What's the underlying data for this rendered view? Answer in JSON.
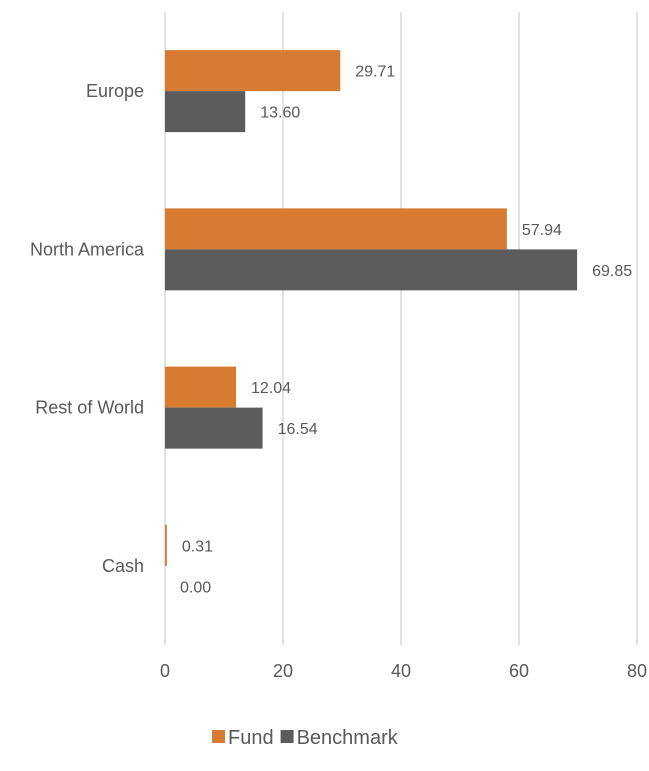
{
  "chart_data": {
    "type": "bar",
    "orientation": "horizontal",
    "categories": [
      "Europe",
      "North America",
      "Rest of World",
      "Cash"
    ],
    "series": [
      {
        "name": "Fund",
        "values": [
          29.71,
          57.94,
          12.04,
          0.31
        ],
        "labels": [
          "29.71",
          "57.94",
          "12.04",
          "0.31"
        ],
        "color": "#d67b31"
      },
      {
        "name": "Benchmark",
        "values": [
          13.6,
          69.85,
          16.54,
          0.0
        ],
        "labels": [
          "13.60",
          "69.85",
          "16.54",
          "0.00"
        ],
        "color": "#5c5c5c"
      }
    ],
    "xlim": [
      0,
      80
    ],
    "xticks": [
      0,
      20,
      40,
      60,
      80
    ],
    "xtick_labels": [
      "0",
      "20",
      "40",
      "60",
      "80"
    ],
    "grid": true,
    "legend_position": "bottom"
  }
}
